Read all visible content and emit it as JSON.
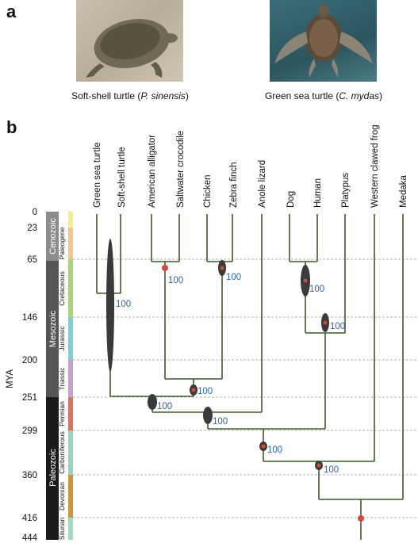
{
  "panel_a": {
    "letter": "a",
    "soft_shell_caption": {
      "prefix": "Soft-shell turtle (",
      "species": "P. sinensis",
      "suffix": ")"
    },
    "green_sea_caption": {
      "prefix": "Green sea  turtle (",
      "species": "C. mydas",
      "suffix": ")"
    },
    "soft_shell_photo": "soft-shell-turtle-photo",
    "green_sea_photo": "green-sea-turtle-photo"
  },
  "panel_b": {
    "letter": "b",
    "axis_label": "MYA",
    "ticks": [
      "0",
      "23",
      "65",
      "146",
      "200",
      "251",
      "299",
      "360",
      "416",
      "444"
    ],
    "eras": [
      "Cenozoic",
      "Mesozoic",
      "Paleozoic"
    ],
    "periods": [
      "Paleogene",
      "Cretaceous",
      "Jurassic",
      "Triassic",
      "Permian",
      "Carboniferous",
      "Devonian",
      "Silurian"
    ],
    "taxa": [
      "Green sea turtle",
      "Soft-shell turtle",
      "American alligator",
      "Saltwater crocodile",
      "Chicken",
      "Zebra finch",
      "Anole lizard",
      "Dog",
      "Human",
      "Platypus",
      "Western clawed frog",
      "Medaka"
    ],
    "bootstrap": [
      "100",
      "100",
      "100",
      "100",
      "100",
      "100",
      "100",
      "100",
      "100"
    ],
    "colors": {
      "branch": "#3d5a2a",
      "bootstrap": "#2a63b3",
      "node": "#d24a3c",
      "ellipse": "#3a3a3a"
    }
  }
}
